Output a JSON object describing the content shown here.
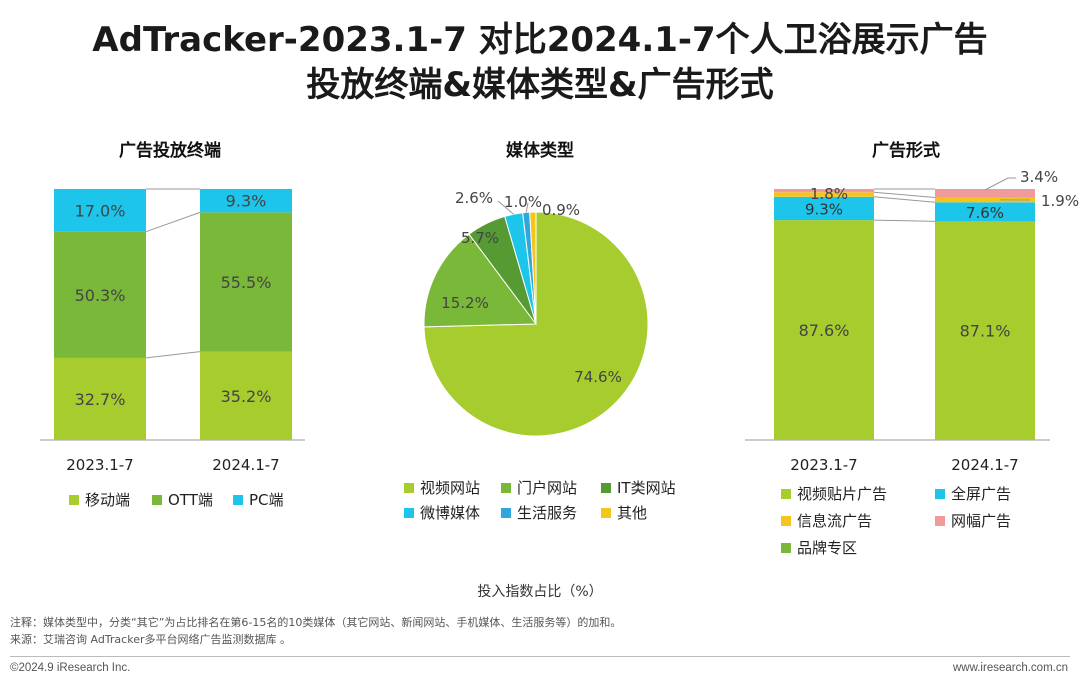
{
  "title_line1": "AdTracker-2023.1-7 对比2024.1-7个人卫浴展示广告",
  "title_line2": "投放终端&媒体类型&广告形式",
  "colors": {
    "green_light": "#a7cc2e",
    "green_mid": "#7ab83a",
    "green_dark": "#569a33",
    "cyan": "#1dc5ea",
    "blue": "#2fa6dc",
    "yellow": "#f6c51c",
    "pink": "#f09a9c"
  },
  "chart_data": [
    {
      "type": "bar",
      "stacked": true,
      "title": "广告投放终端",
      "categories": [
        "2023.1-7",
        "2024.1-7"
      ],
      "series": [
        {
          "name": "移动端",
          "values": [
            32.7,
            35.2
          ],
          "color": "#a7cc2e"
        },
        {
          "name": "OTT端",
          "values": [
            50.3,
            55.5
          ],
          "color": "#7ab83a"
        },
        {
          "name": "PC端",
          "values": [
            17.0,
            9.3
          ],
          "color": "#1dc5ea"
        }
      ],
      "labels": [
        [
          "32.7%",
          "50.3%",
          "17.0%"
        ],
        [
          "35.2%",
          "55.5%",
          "9.3%"
        ]
      ],
      "legend_position": "bottom"
    },
    {
      "type": "pie",
      "title": "媒体类型",
      "slices": [
        {
          "name": "视频网站",
          "value": 74.6,
          "label": "74.6%",
          "color": "#a7cc2e"
        },
        {
          "name": "门户网站",
          "value": 15.2,
          "label": "15.2%",
          "color": "#7ab83a"
        },
        {
          "name": "IT类网站",
          "value": 5.7,
          "label": "5.7%",
          "color": "#569a33"
        },
        {
          "name": "微博媒体",
          "value": 2.6,
          "label": "2.6%",
          "color": "#1dc5ea"
        },
        {
          "name": "生活服务",
          "value": 1.0,
          "label": "1.0%",
          "color": "#2fa6dc"
        },
        {
          "name": "其他",
          "value": 0.9,
          "label": "0.9%",
          "color": "#f6c51c"
        }
      ],
      "legend_position": "bottom"
    },
    {
      "type": "bar",
      "stacked": true,
      "title": "广告形式",
      "categories": [
        "2023.1-7",
        "2024.1-7"
      ],
      "series": [
        {
          "name": "品牌专区",
          "values": [
            0.0,
            0.0
          ],
          "color": "#7ab83a"
        },
        {
          "name": "视频贴片广告",
          "values": [
            87.6,
            87.1
          ],
          "color": "#a7cc2e"
        },
        {
          "name": "全屏广告",
          "values": [
            9.3,
            7.6
          ],
          "color": "#1dc5ea"
        },
        {
          "name": "信息流广告",
          "values": [
            1.8,
            1.9
          ],
          "color": "#f6c51c"
        },
        {
          "name": "网幅广告",
          "values": [
            1.3,
            3.4
          ],
          "color": "#f09a9c"
        }
      ],
      "labels": [
        [
          "87.6%",
          "9.3%",
          "1.8%"
        ],
        [
          "87.1%",
          "7.6%",
          "1.9%",
          "3.4%"
        ]
      ],
      "legend_position": "bottom"
    }
  ],
  "legend_terminal": [
    "移动端",
    "OTT端",
    "PC端"
  ],
  "legend_media": [
    "视频网站",
    "门户网站",
    "IT类网站",
    "微博媒体",
    "生活服务",
    "其他"
  ],
  "legend_format": [
    "视频贴片广告",
    "全屏广告",
    "信息流广告",
    "网幅广告",
    "品牌专区"
  ],
  "axis_title": "投入指数占比（%）",
  "note": "注释：媒体类型中，分类“其它”为占比排名在第6-15名的10类媒体（其它网站、新闻网站、手机媒体、生活服务等）的加和。",
  "source": "来源：艾瑞咨询 AdTracker多平台网络广告监测数据库 。",
  "footer_left": "©2024.9 iResearch Inc.",
  "footer_right": "www.iresearch.com.cn"
}
